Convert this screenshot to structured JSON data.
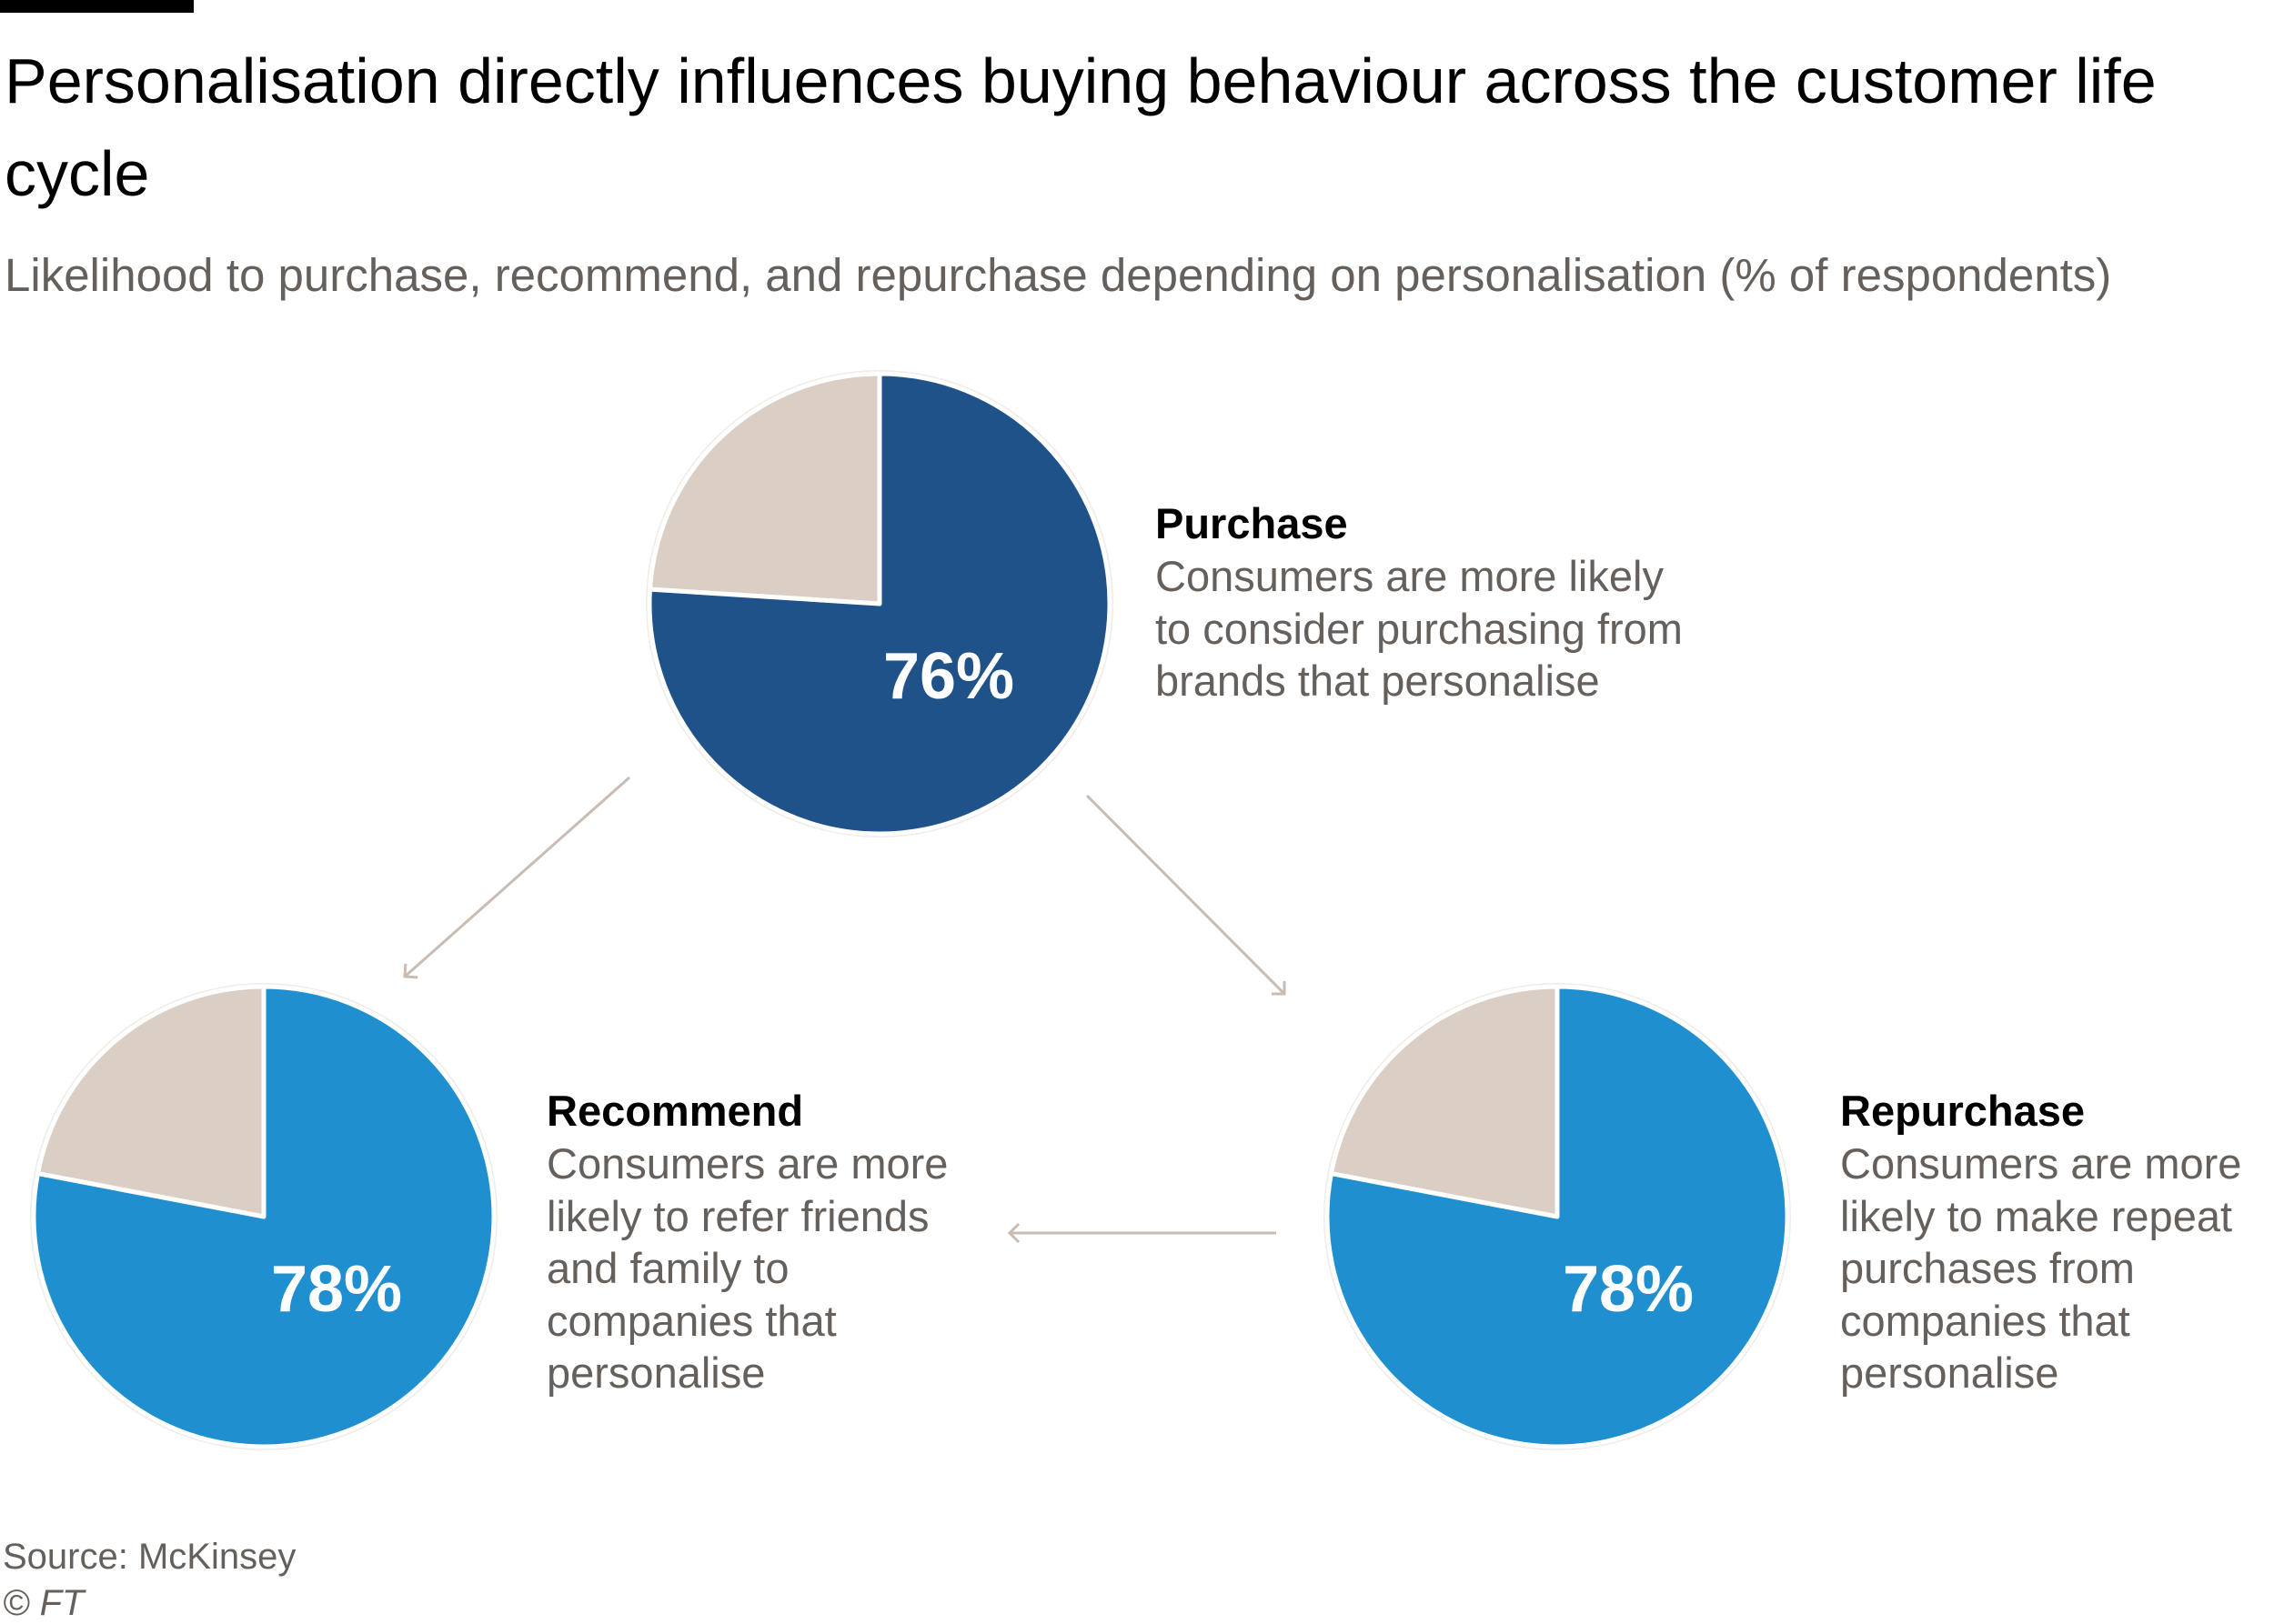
{
  "header": {
    "title": "Personalisation directly influences buying behaviour across the customer life cycle",
    "subtitle": "Likelihood to purchase, recommend, and repurchase depending on personalisation (% of respondents)"
  },
  "chart_data": [
    {
      "type": "pie",
      "name": "Purchase",
      "description": "Consumers are more likely\nto consider purchasing from\nbrands that personalise",
      "value": 76,
      "label": "76%",
      "colors": [
        "#1f5289",
        "#dbcec5"
      ]
    },
    {
      "type": "pie",
      "name": "Recommend",
      "description": "Consumers are more\nlikely to refer friends\nand family to\ncompanies that\npersonalise",
      "value": 78,
      "label": "78%",
      "colors": [
        "#1f8fcf",
        "#dbcec5"
      ]
    },
    {
      "type": "pie",
      "name": "Repurchase",
      "description": "Consumers are more\nlikely to make repeat\npurchases from\ncompanies that\npersonalise",
      "value": 78,
      "label": "78%",
      "colors": [
        "#1f8fcf",
        "#dbcec5"
      ]
    }
  ],
  "colors": {
    "arrow": "#c9bcb3",
    "pie_border": "#f0ebe7"
  },
  "footer": {
    "source": "Source: McKinsey",
    "copyright": "© FT"
  }
}
